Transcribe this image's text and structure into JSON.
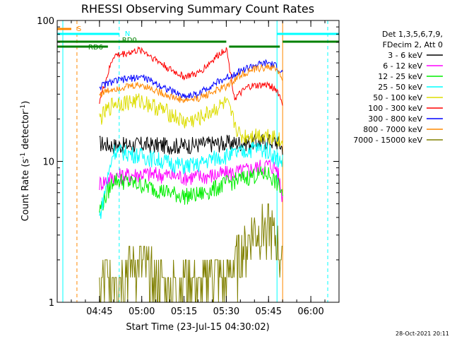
{
  "chart_data": {
    "type": "line",
    "title": "RHESSI Observing Summary Count Rates",
    "xlabel": "Start Time (23-Jul-15 04:30:02)",
    "ylabel_main": "Count Rate (s",
    "ylabel_sup": "-1",
    "ylabel_mid": " detector",
    "ylabel_sup2": "-1",
    "ylabel_end": ")",
    "yscale": "log",
    "ylim": [
      1,
      100
    ],
    "xlim": [
      "04:30",
      "06:10"
    ],
    "y_ticks": [
      {
        "value": 1,
        "label": "1"
      },
      {
        "value": 10,
        "label": "10"
      },
      {
        "value": 100,
        "label": "100"
      }
    ],
    "x_ticks": [
      {
        "value": "04:45",
        "label": "04:45"
      },
      {
        "value": "05:00",
        "label": "05:00"
      },
      {
        "value": "05:15",
        "label": "05:15"
      },
      {
        "value": "05:30",
        "label": "05:30"
      },
      {
        "value": "05:45",
        "label": "05:45"
      },
      {
        "value": "06:00",
        "label": "06:00"
      }
    ],
    "legend_header": [
      "Det 1,3,5,6,7,9,",
      "FDecim 2, Att 0"
    ],
    "legend_position": "right",
    "series": [
      {
        "name": "3 - 6 keV",
        "color": "#000000",
        "x": [
          "04:45",
          "04:50",
          "05:00",
          "05:10",
          "05:15",
          "05:20",
          "05:25",
          "05:30",
          "05:35",
          "05:40",
          "05:45",
          "05:48",
          "05:50"
        ],
        "y": [
          13.5,
          13.0,
          13.2,
          13.0,
          13.0,
          13.2,
          13.4,
          13.5,
          13.6,
          13.8,
          14.0,
          13.8,
          12.5
        ]
      },
      {
        "name": "6 - 12 keV",
        "color": "#ff00ff",
        "x": [
          "04:45",
          "04:50",
          "05:00",
          "05:10",
          "05:15",
          "05:20",
          "05:25",
          "05:30",
          "05:35",
          "05:40",
          "05:45",
          "05:48",
          "05:50"
        ],
        "y": [
          7.0,
          7.8,
          8.2,
          8.0,
          7.8,
          7.8,
          8.0,
          8.2,
          8.5,
          9.0,
          9.5,
          9.0,
          5.5
        ]
      },
      {
        "name": "12 - 25 keV",
        "color": "#00ee00",
        "x": [
          "04:45",
          "04:50",
          "05:00",
          "05:10",
          "05:15",
          "05:20",
          "05:25",
          "05:30",
          "05:35",
          "05:40",
          "05:45",
          "05:48",
          "05:50"
        ],
        "y": [
          4.5,
          7.5,
          6.8,
          6.0,
          5.7,
          5.8,
          6.3,
          7.0,
          7.5,
          8.0,
          8.2,
          7.0,
          6.0
        ]
      },
      {
        "name": "25 - 50 keV",
        "color": "#00ffff",
        "x": [
          "04:45",
          "04:50",
          "05:00",
          "05:10",
          "05:15",
          "05:20",
          "05:25",
          "05:30",
          "05:35",
          "05:40",
          "05:45",
          "05:48",
          "05:50"
        ],
        "y": [
          4.0,
          12.0,
          11.0,
          9.8,
          9.3,
          9.5,
          10.5,
          11.0,
          11.5,
          12.5,
          12.0,
          10.5,
          10.0
        ]
      },
      {
        "name": "50 - 100 keV",
        "color": "#dddd00",
        "x": [
          "04:45",
          "04:50",
          "05:00",
          "05:10",
          "05:15",
          "05:20",
          "05:25",
          "05:30",
          "05:35",
          "05:40",
          "05:45",
          "05:48",
          "05:50"
        ],
        "y": [
          20.0,
          26.0,
          27.0,
          22.0,
          19.0,
          20.0,
          23.0,
          26.0,
          15.0,
          15.5,
          15.5,
          15.0,
          13.0
        ]
      },
      {
        "name": "100 - 300 keV",
        "color": "#ff0000",
        "x": [
          "04:45",
          "04:50",
          "05:00",
          "05:10",
          "05:15",
          "05:20",
          "05:25",
          "05:30",
          "05:33",
          "05:38",
          "05:45",
          "05:48",
          "05:50"
        ],
        "y": [
          27.0,
          56.0,
          62.0,
          45.0,
          40.0,
          42.0,
          52.0,
          64.0,
          28.0,
          34.0,
          35.0,
          32.0,
          26.0
        ]
      },
      {
        "name": "300 - 800 keV",
        "color": "#0000ff",
        "x": [
          "04:45",
          "04:50",
          "05:00",
          "05:10",
          "05:15",
          "05:20",
          "05:25",
          "05:30",
          "05:35",
          "05:40",
          "05:45",
          "05:48",
          "05:50"
        ],
        "y": [
          34.0,
          37.0,
          40.0,
          32.0,
          29.0,
          30.0,
          35.0,
          39.0,
          44.0,
          48.0,
          50.0,
          47.0,
          42.0
        ]
      },
      {
        "name": "800 - 7000 keV",
        "color": "#ff8800",
        "x": [
          "04:45",
          "04:50",
          "05:00",
          "05:10",
          "05:15",
          "05:20",
          "05:25",
          "05:30",
          "05:35",
          "05:40",
          "05:45",
          "05:48",
          "05:50"
        ],
        "y": [
          30.0,
          33.0,
          35.0,
          29.0,
          27.0,
          28.0,
          31.0,
          34.0,
          41.0,
          45.0,
          47.0,
          45.0,
          38.0
        ]
      },
      {
        "name": "7000 - 15000 keV",
        "color": "#808000",
        "x": [
          "04:45",
          "04:50",
          "04:55",
          "05:00",
          "05:05",
          "05:10",
          "05:15",
          "05:20",
          "05:25",
          "05:30",
          "05:35",
          "05:40",
          "05:45",
          "05:48",
          "05:50"
        ],
        "y": [
          1.3,
          1.6,
          1.8,
          1.9,
          1.5,
          1.2,
          1.6,
          1.3,
          1.7,
          1.4,
          2.3,
          3.2,
          3.5,
          2.8,
          1.8
        ]
      }
    ],
    "flags": [
      {
        "label": "S",
        "color": "#ff8800"
      },
      {
        "label": "N",
        "color": "#00ffff"
      },
      {
        "label": "RD0",
        "color": "#008000"
      },
      {
        "label": "RD6",
        "color": "#008000"
      }
    ],
    "vertical_markers": [
      {
        "x": "04:32",
        "color": "#00ffff",
        "style": "solid"
      },
      {
        "x": "04:37",
        "color": "#ff8800",
        "style": "dashed"
      },
      {
        "x": "04:52",
        "color": "#00ffff",
        "style": "dashed"
      },
      {
        "x": "05:48",
        "color": "#00ffff",
        "style": "solid"
      },
      {
        "x": "05:50",
        "color": "#ff8800",
        "style": "solid"
      },
      {
        "x": "06:06",
        "color": "#00ffff",
        "style": "dashed"
      }
    ]
  },
  "footer": {
    "timestamp": "28-Oct-2021 20:11"
  }
}
